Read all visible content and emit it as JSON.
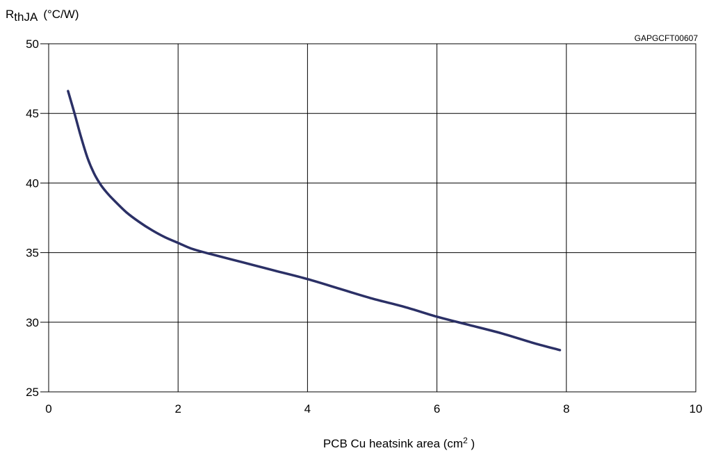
{
  "chart_data": {
    "type": "line",
    "figure_code": "GAPGCFT00607",
    "ylabel": {
      "symbol": "R",
      "subscript": "thJA",
      "unit": "(°C/W)"
    },
    "xlabel": {
      "prefix": "PCB Cu heatsink area (cm",
      "superscript": "2",
      "suffix": " )"
    },
    "xlim": [
      0,
      10
    ],
    "ylim": [
      25,
      50
    ],
    "x_ticks": [
      0,
      2,
      4,
      6,
      8,
      10
    ],
    "y_ticks": [
      25,
      30,
      35,
      40,
      45,
      50
    ],
    "grid": true,
    "series": [
      {
        "color": "#2b3066",
        "x": [
          0.3,
          0.4,
          0.5,
          0.6,
          0.7,
          0.8,
          0.9,
          1.0,
          1.2,
          1.4,
          1.6,
          1.8,
          2.0,
          2.2,
          2.5,
          3.0,
          3.5,
          4.0,
          4.5,
          5.0,
          5.5,
          6.0,
          6.5,
          7.0,
          7.5,
          7.9
        ],
        "y": [
          46.6,
          45.0,
          43.3,
          41.8,
          40.7,
          39.9,
          39.3,
          38.8,
          37.9,
          37.2,
          36.6,
          36.1,
          35.7,
          35.3,
          34.9,
          34.3,
          33.7,
          33.1,
          32.4,
          31.7,
          31.1,
          30.4,
          29.8,
          29.2,
          28.5,
          28.0
        ]
      }
    ]
  }
}
